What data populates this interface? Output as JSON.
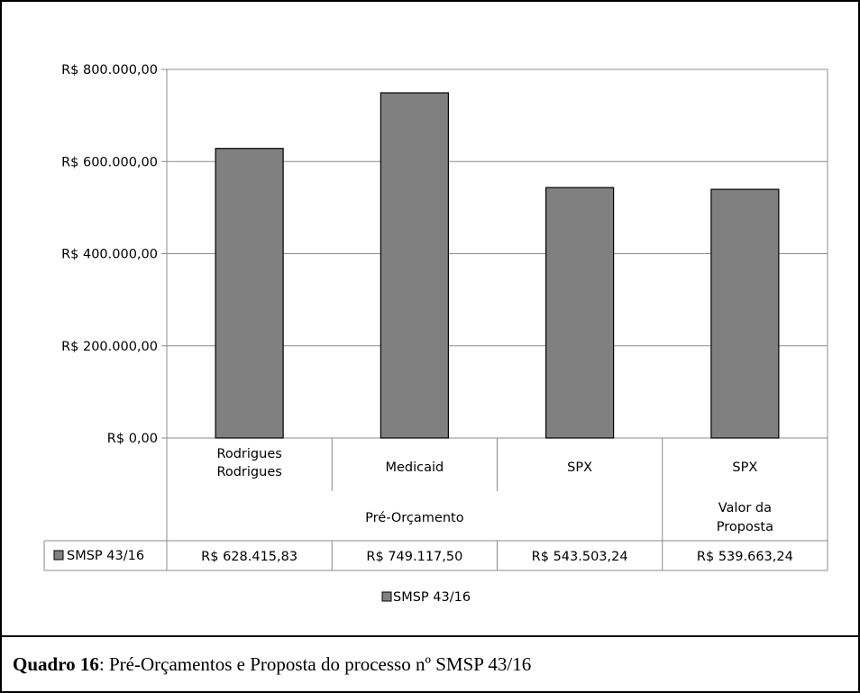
{
  "chart_data": {
    "type": "bar",
    "categories": [
      [
        "Rodrigues",
        "Rodrigues"
      ],
      [
        "Medicaid"
      ],
      [
        "SPX"
      ],
      [
        "SPX"
      ]
    ],
    "groups": [
      {
        "label": "Pré-Orçamento",
        "span": [
          0,
          2
        ]
      },
      {
        "label": [
          "Valor da",
          "Proposta"
        ],
        "span": [
          3,
          3
        ]
      }
    ],
    "series": [
      {
        "name": "SMSP 43/16",
        "values": [
          628415.83,
          749117.5,
          543503.24,
          539663.24
        ],
        "value_labels": [
          "R$ 628.415,83",
          "R$ 749.117,50",
          "R$ 543.503,24",
          "R$ 539.663,24"
        ],
        "color": "#808080"
      }
    ],
    "ylim": [
      0,
      800000
    ],
    "yticks": [
      0,
      200000,
      400000,
      600000,
      800000
    ],
    "ytick_labels": [
      "R$ 0,00",
      "R$ 200.000,00",
      "R$ 400.000,00",
      "R$ 600.000,00",
      "R$ 800.000,00"
    ],
    "grid": true,
    "legend": "bottom",
    "data_table": true
  },
  "caption": {
    "label": "Quadro 16",
    "text": ": Pré-Orçamentos e Proposta do processo nº SMSP 43/16"
  }
}
